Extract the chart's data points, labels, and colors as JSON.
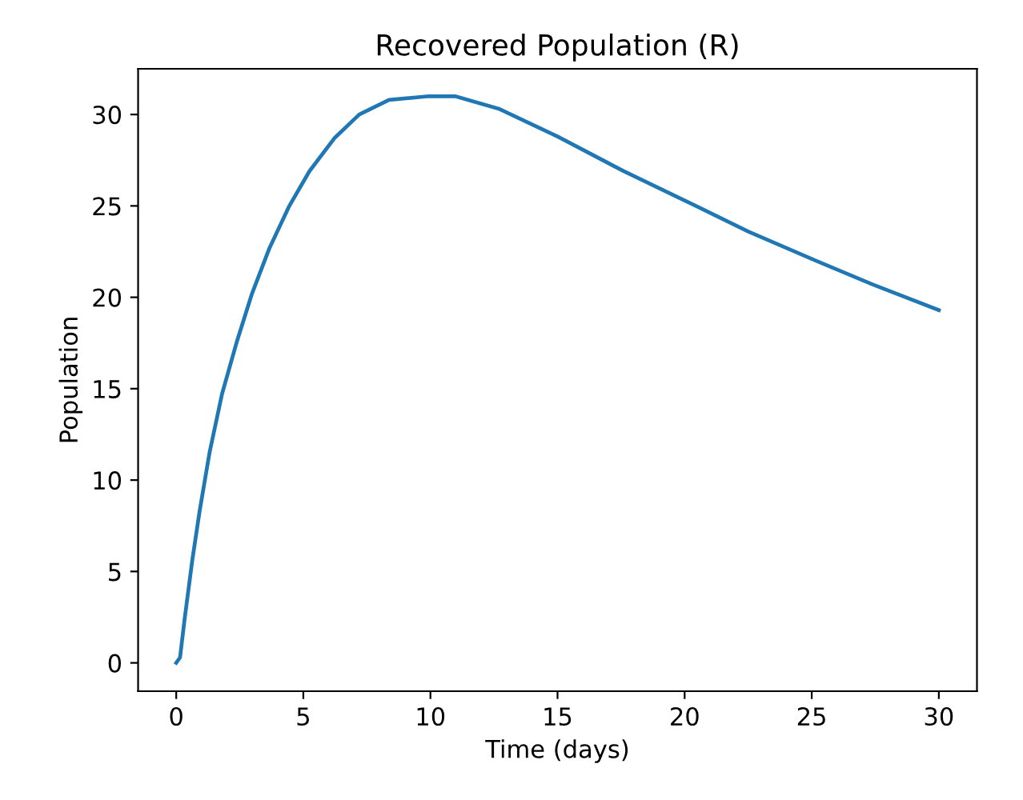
{
  "chart_data": {
    "type": "line",
    "title": "Recovered Population (R)",
    "xlabel": "Time (days)",
    "ylabel": "Population",
    "series": [
      {
        "color": "#1f77b4",
        "x": [
          0,
          0.15,
          0.33,
          0.63,
          0.92,
          1.31,
          1.8,
          2.39,
          2.98,
          3.67,
          4.45,
          5.24,
          6.22,
          7.2,
          8.37,
          9.94,
          10.97,
          12.72,
          15,
          17.6,
          20,
          22.5,
          25,
          27.4,
          30
        ],
        "values": [
          0,
          0.3,
          2.4,
          5.6,
          8.3,
          11.5,
          14.7,
          17.6,
          20.2,
          22.7,
          25.0,
          26.9,
          28.7,
          30.0,
          30.8,
          31.0,
          31.0,
          30.3,
          28.8,
          26.9,
          25.3,
          23.6,
          22.1,
          20.7,
          19.3
        ]
      }
    ],
    "xlim": [
      -1.5,
      31.5
    ],
    "ylim": [
      -1.55,
      32.5
    ],
    "xticks": [
      0,
      5,
      10,
      15,
      20,
      25,
      30
    ],
    "yticks": [
      0,
      5,
      10,
      15,
      20,
      25,
      30
    ],
    "grid": false,
    "legend": false
  }
}
